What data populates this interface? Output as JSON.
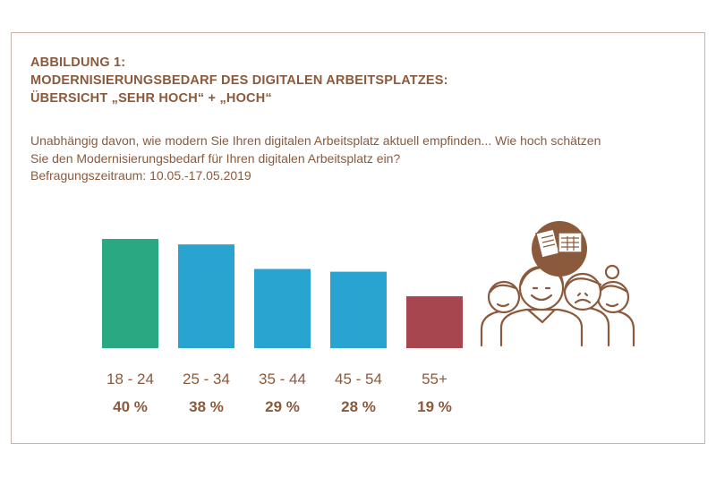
{
  "title": {
    "line1": "ABBILDUNG 1:",
    "line2": "MODERNISIERUNGSBEDARF DES DIGITALEN ARBEITSPLATZES:",
    "line3": "ÜBERSICHT „SEHR HOCH“ + „HOCH“"
  },
  "question": {
    "line1": "Unabhängig davon, wie modern Sie Ihren digitalen Arbeitsplatz aktuell empfinden... Wie hoch schätzen",
    "line2": "Sie den Modernisierungsbedarf für Ihren digitalen Arbeitsplatz ein?",
    "line3": "Befragungszeitraum: 10.05.-17.05.2019"
  },
  "colors": {
    "text": "#8b5a3c",
    "frame": "#c9b3a6",
    "bar_first": "#2aa882",
    "bar_middle": "#29a3cf",
    "bar_last": "#a8464f"
  },
  "illustration": {
    "icon": "people-group-with-documents-icon"
  },
  "chart_data": {
    "type": "bar",
    "categories": [
      "18 - 24",
      "25 - 34",
      "35 - 44",
      "45 - 54",
      "55+"
    ],
    "values": [
      40,
      38,
      29,
      28,
      19
    ],
    "value_labels": [
      "40 %",
      "38 %",
      "29 %",
      "28 %",
      "19 %"
    ],
    "bar_colors": [
      "#2aa882",
      "#29a3cf",
      "#29a3cf",
      "#29a3cf",
      "#a8464f"
    ],
    "ylim": [
      0,
      40
    ],
    "grid": false,
    "legend": "none"
  }
}
